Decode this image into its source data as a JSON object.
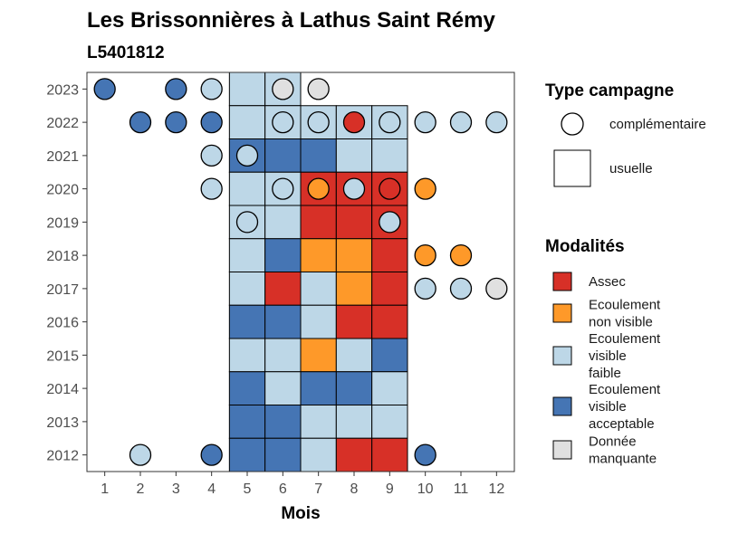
{
  "chart_data": {
    "type": "heatmap",
    "title": "Les Brissonnières à Lathus Saint Rémy",
    "subtitle": "L5401812",
    "xlabel": "Mois",
    "ylabel": "",
    "x_ticks": [
      1,
      2,
      3,
      4,
      5,
      6,
      7,
      8,
      9,
      10,
      11,
      12
    ],
    "y_ticks": [
      2012,
      2013,
      2014,
      2015,
      2016,
      2017,
      2018,
      2019,
      2020,
      2021,
      2022,
      2023
    ],
    "xlim": [
      0.5,
      12.5
    ],
    "ylim": [
      2011.5,
      2023.5
    ],
    "colors": {
      "Assec": "#d73027",
      "Ecoulement non visible": "#fe9929",
      "Ecoulement visible faible": "#bdd7e7",
      "Ecoulement visible acceptable": "#4575b4",
      "Donnée manquante": "#e0e0e0"
    },
    "usuelle": [
      {
        "year": 2023,
        "month": 5,
        "value": "Ecoulement visible faible"
      },
      {
        "year": 2023,
        "month": 6,
        "value": "Ecoulement visible faible"
      },
      {
        "year": 2022,
        "month": 5,
        "value": "Ecoulement visible faible"
      },
      {
        "year": 2022,
        "month": 6,
        "value": "Ecoulement visible faible"
      },
      {
        "year": 2022,
        "month": 7,
        "value": "Ecoulement visible faible"
      },
      {
        "year": 2022,
        "month": 8,
        "value": "Ecoulement visible faible"
      },
      {
        "year": 2022,
        "month": 9,
        "value": "Ecoulement visible faible"
      },
      {
        "year": 2021,
        "month": 5,
        "value": "Ecoulement visible acceptable"
      },
      {
        "year": 2021,
        "month": 6,
        "value": "Ecoulement visible acceptable"
      },
      {
        "year": 2021,
        "month": 7,
        "value": "Ecoulement visible acceptable"
      },
      {
        "year": 2021,
        "month": 8,
        "value": "Ecoulement visible faible"
      },
      {
        "year": 2021,
        "month": 9,
        "value": "Ecoulement visible faible"
      },
      {
        "year": 2020,
        "month": 5,
        "value": "Ecoulement visible faible"
      },
      {
        "year": 2020,
        "month": 6,
        "value": "Ecoulement visible faible"
      },
      {
        "year": 2020,
        "month": 7,
        "value": "Assec"
      },
      {
        "year": 2020,
        "month": 8,
        "value": "Assec"
      },
      {
        "year": 2020,
        "month": 9,
        "value": "Assec"
      },
      {
        "year": 2019,
        "month": 5,
        "value": "Ecoulement visible faible"
      },
      {
        "year": 2019,
        "month": 6,
        "value": "Ecoulement visible faible"
      },
      {
        "year": 2019,
        "month": 7,
        "value": "Assec"
      },
      {
        "year": 2019,
        "month": 8,
        "value": "Assec"
      },
      {
        "year": 2019,
        "month": 9,
        "value": "Assec"
      },
      {
        "year": 2018,
        "month": 5,
        "value": "Ecoulement visible faible"
      },
      {
        "year": 2018,
        "month": 6,
        "value": "Ecoulement visible acceptable"
      },
      {
        "year": 2018,
        "month": 7,
        "value": "Ecoulement non visible"
      },
      {
        "year": 2018,
        "month": 8,
        "value": "Ecoulement non visible"
      },
      {
        "year": 2018,
        "month": 9,
        "value": "Assec"
      },
      {
        "year": 2017,
        "month": 5,
        "value": "Ecoulement visible faible"
      },
      {
        "year": 2017,
        "month": 6,
        "value": "Assec"
      },
      {
        "year": 2017,
        "month": 7,
        "value": "Ecoulement visible faible"
      },
      {
        "year": 2017,
        "month": 8,
        "value": "Ecoulement non visible"
      },
      {
        "year": 2017,
        "month": 9,
        "value": "Assec"
      },
      {
        "year": 2016,
        "month": 5,
        "value": "Ecoulement visible acceptable"
      },
      {
        "year": 2016,
        "month": 6,
        "value": "Ecoulement visible acceptable"
      },
      {
        "year": 2016,
        "month": 7,
        "value": "Ecoulement visible faible"
      },
      {
        "year": 2016,
        "month": 8,
        "value": "Assec"
      },
      {
        "year": 2016,
        "month": 9,
        "value": "Assec"
      },
      {
        "year": 2015,
        "month": 5,
        "value": "Ecoulement visible faible"
      },
      {
        "year": 2015,
        "month": 6,
        "value": "Ecoulement visible faible"
      },
      {
        "year": 2015,
        "month": 7,
        "value": "Ecoulement non visible"
      },
      {
        "year": 2015,
        "month": 8,
        "value": "Ecoulement visible faible"
      },
      {
        "year": 2015,
        "month": 9,
        "value": "Ecoulement visible acceptable"
      },
      {
        "year": 2014,
        "month": 5,
        "value": "Ecoulement visible acceptable"
      },
      {
        "year": 2014,
        "month": 6,
        "value": "Ecoulement visible faible"
      },
      {
        "year": 2014,
        "month": 7,
        "value": "Ecoulement visible acceptable"
      },
      {
        "year": 2014,
        "month": 8,
        "value": "Ecoulement visible acceptable"
      },
      {
        "year": 2014,
        "month": 9,
        "value": "Ecoulement visible faible"
      },
      {
        "year": 2013,
        "month": 5,
        "value": "Ecoulement visible acceptable"
      },
      {
        "year": 2013,
        "month": 6,
        "value": "Ecoulement visible acceptable"
      },
      {
        "year": 2013,
        "month": 7,
        "value": "Ecoulement visible faible"
      },
      {
        "year": 2013,
        "month": 8,
        "value": "Ecoulement visible faible"
      },
      {
        "year": 2013,
        "month": 9,
        "value": "Ecoulement visible faible"
      },
      {
        "year": 2012,
        "month": 5,
        "value": "Ecoulement visible acceptable"
      },
      {
        "year": 2012,
        "month": 6,
        "value": "Ecoulement visible acceptable"
      },
      {
        "year": 2012,
        "month": 7,
        "value": "Ecoulement visible faible"
      },
      {
        "year": 2012,
        "month": 8,
        "value": "Assec"
      },
      {
        "year": 2012,
        "month": 9,
        "value": "Assec"
      }
    ],
    "complementaire": [
      {
        "year": 2023,
        "month": 1,
        "value": "Ecoulement visible acceptable"
      },
      {
        "year": 2023,
        "month": 3,
        "value": "Ecoulement visible acceptable"
      },
      {
        "year": 2023,
        "month": 4,
        "value": "Ecoulement visible faible"
      },
      {
        "year": 2023,
        "month": 6,
        "value": "Donnée manquante"
      },
      {
        "year": 2023,
        "month": 7,
        "value": "Donnée manquante"
      },
      {
        "year": 2022,
        "month": 2,
        "value": "Ecoulement visible acceptable"
      },
      {
        "year": 2022,
        "month": 3,
        "value": "Ecoulement visible acceptable"
      },
      {
        "year": 2022,
        "month": 4,
        "value": "Ecoulement visible acceptable"
      },
      {
        "year": 2022,
        "month": 6,
        "value": "Ecoulement visible faible"
      },
      {
        "year": 2022,
        "month": 7,
        "value": "Ecoulement visible faible"
      },
      {
        "year": 2022,
        "month": 8,
        "value": "Assec"
      },
      {
        "year": 2022,
        "month": 9,
        "value": "Ecoulement visible faible"
      },
      {
        "year": 2022,
        "month": 10,
        "value": "Ecoulement visible faible"
      },
      {
        "year": 2022,
        "month": 11,
        "value": "Ecoulement visible faible"
      },
      {
        "year": 2022,
        "month": 12,
        "value": "Ecoulement visible faible"
      },
      {
        "year": 2021,
        "month": 4,
        "value": "Ecoulement visible faible"
      },
      {
        "year": 2021,
        "month": 5,
        "value": "Ecoulement visible faible"
      },
      {
        "year": 2020,
        "month": 4,
        "value": "Ecoulement visible faible"
      },
      {
        "year": 2020,
        "month": 6,
        "value": "Ecoulement visible faible"
      },
      {
        "year": 2020,
        "month": 7,
        "value": "Ecoulement non visible"
      },
      {
        "year": 2020,
        "month": 8,
        "value": "Ecoulement visible faible"
      },
      {
        "year": 2020,
        "month": 9,
        "value": "Assec"
      },
      {
        "year": 2020,
        "month": 10,
        "value": "Ecoulement non visible"
      },
      {
        "year": 2019,
        "month": 5,
        "value": "Ecoulement visible faible"
      },
      {
        "year": 2019,
        "month": 9,
        "value": "Ecoulement visible faible"
      },
      {
        "year": 2018,
        "month": 10,
        "value": "Ecoulement non visible"
      },
      {
        "year": 2018,
        "month": 11,
        "value": "Ecoulement non visible"
      },
      {
        "year": 2017,
        "month": 10,
        "value": "Ecoulement visible faible"
      },
      {
        "year": 2017,
        "month": 11,
        "value": "Ecoulement visible faible"
      },
      {
        "year": 2017,
        "month": 12,
        "value": "Donnée manquante"
      },
      {
        "year": 2012,
        "month": 2,
        "value": "Ecoulement visible faible"
      },
      {
        "year": 2012,
        "month": 4,
        "value": "Ecoulement visible acceptable"
      },
      {
        "year": 2012,
        "month": 10,
        "value": "Ecoulement visible acceptable"
      }
    ],
    "legend": {
      "placement": "right",
      "type_title": "Type campagne",
      "type_items": [
        {
          "key": "complementaire",
          "label": "complémentaire"
        },
        {
          "key": "usuelle",
          "label": "usuelle"
        }
      ],
      "modalites_title": "Modalités",
      "modalites_items": [
        {
          "value": "Assec",
          "lines": [
            "Assec"
          ]
        },
        {
          "value": "Ecoulement non visible",
          "lines": [
            "Ecoulement",
            "non visible"
          ]
        },
        {
          "value": "Ecoulement visible faible",
          "lines": [
            "Ecoulement",
            "visible",
            "faible"
          ]
        },
        {
          "value": "Ecoulement visible acceptable",
          "lines": [
            "Ecoulement",
            "visible",
            "acceptable"
          ]
        },
        {
          "value": "Donnée manquante",
          "lines": [
            "Donnée",
            "manquante"
          ]
        }
      ]
    }
  }
}
